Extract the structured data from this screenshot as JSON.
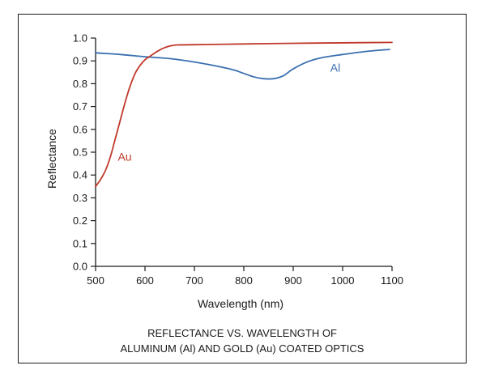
{
  "chart_data": {
    "type": "line",
    "title": "",
    "caption": [
      "REFLECTANCE VS. WAVELENGTH OF",
      "ALUMINUM (Al) AND GOLD (Au) COATED OPTICS"
    ],
    "xlabel": "Wavelength (nm)",
    "ylabel": "Reflectance",
    "xlim": [
      500,
      1100
    ],
    "ylim": [
      0,
      1.0
    ],
    "xticks": [
      "500",
      "600",
      "700",
      "800",
      "900",
      "1000",
      "1100"
    ],
    "yticks": [
      "0.0",
      "0.1",
      "0.2",
      "0.3",
      "0.4",
      "0.5",
      "0.6",
      "0.7",
      "0.8",
      "0.9",
      "1.0"
    ],
    "grid": false,
    "series": [
      {
        "name": "Al",
        "color": "#3a6fb0",
        "label_at": [
          975,
          0.87
        ],
        "x": [
          500,
          550,
          600,
          650,
          700,
          750,
          780,
          800,
          820,
          840,
          860,
          880,
          900,
          930,
          960,
          1000,
          1050,
          1095
        ],
        "y": [
          0.935,
          0.928,
          0.918,
          0.91,
          0.895,
          0.875,
          0.86,
          0.845,
          0.83,
          0.822,
          0.822,
          0.835,
          0.865,
          0.897,
          0.915,
          0.928,
          0.942,
          0.95
        ]
      },
      {
        "name": "Au",
        "color": "#c0392b",
        "label_at": [
          545,
          0.48
        ],
        "x": [
          500,
          510,
          520,
          530,
          540,
          550,
          560,
          570,
          580,
          590,
          600,
          610,
          620,
          630,
          640,
          650,
          660,
          670,
          700,
          800,
          900,
          1000,
          1100
        ],
        "y": [
          0.35,
          0.38,
          0.42,
          0.48,
          0.56,
          0.64,
          0.72,
          0.79,
          0.845,
          0.88,
          0.905,
          0.92,
          0.935,
          0.948,
          0.958,
          0.965,
          0.969,
          0.97,
          0.971,
          0.974,
          0.977,
          0.979,
          0.981
        ]
      }
    ]
  }
}
